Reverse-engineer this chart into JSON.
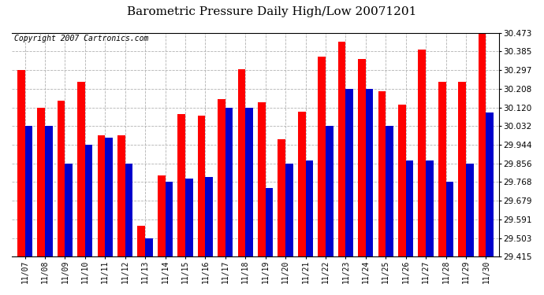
{
  "title": "Barometric Pressure Daily High/Low 20071201",
  "copyright": "Copyright 2007 Cartronics.com",
  "dates": [
    "11/07",
    "11/08",
    "11/09",
    "11/10",
    "11/11",
    "11/12",
    "11/13",
    "11/14",
    "11/15",
    "11/16",
    "11/17",
    "11/18",
    "11/19",
    "11/20",
    "11/21",
    "11/22",
    "11/23",
    "11/24",
    "11/25",
    "11/26",
    "11/27",
    "11/28",
    "11/29",
    "11/30"
  ],
  "highs": [
    30.297,
    30.12,
    30.15,
    30.24,
    29.99,
    29.99,
    29.56,
    29.8,
    30.09,
    30.08,
    30.16,
    30.3,
    30.145,
    29.97,
    30.1,
    30.36,
    30.43,
    30.35,
    30.195,
    30.135,
    30.395,
    30.24,
    30.24,
    30.473
  ],
  "lows": [
    30.032,
    30.032,
    29.856,
    29.944,
    29.978,
    29.856,
    29.503,
    29.768,
    29.786,
    29.79,
    30.12,
    30.12,
    29.74,
    29.856,
    29.868,
    30.032,
    30.208,
    30.208,
    30.032,
    29.868,
    29.868,
    29.768,
    29.856,
    30.095
  ],
  "ymin": 29.415,
  "ymax": 30.473,
  "yticks": [
    29.415,
    29.503,
    29.591,
    29.679,
    29.768,
    29.856,
    29.944,
    30.032,
    30.12,
    30.208,
    30.297,
    30.385,
    30.473
  ],
  "high_color": "#ff0000",
  "low_color": "#0000cc",
  "bg_color": "#ffffff",
  "plot_bg_color": "#ffffff",
  "grid_color": "#aaaaaa",
  "title_fontsize": 11,
  "copyright_fontsize": 7,
  "bar_width": 0.38
}
